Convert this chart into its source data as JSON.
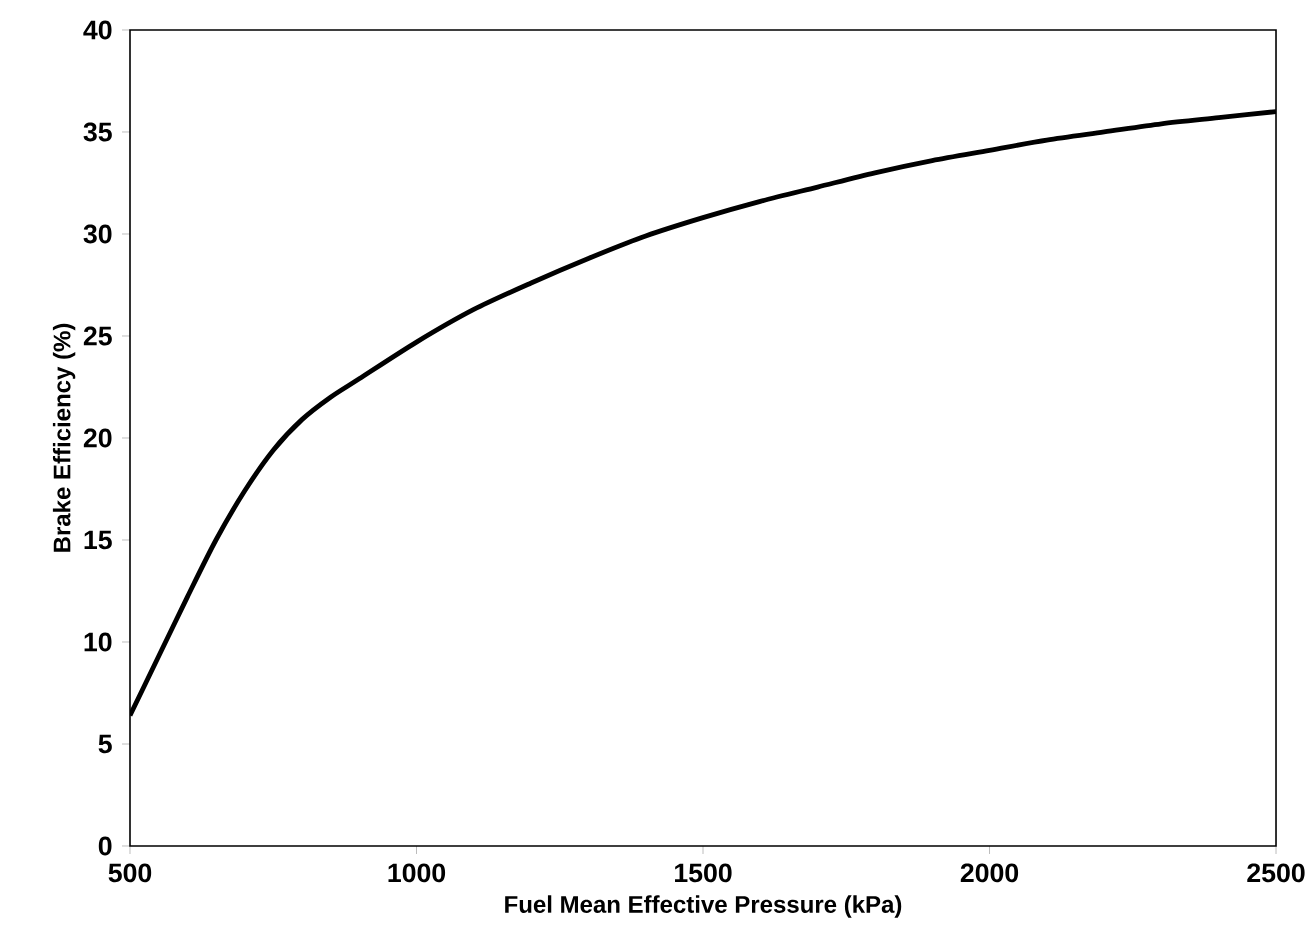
{
  "chart_data": {
    "type": "line",
    "xlabel": "Fuel Mean Effective Pressure (kPa)",
    "ylabel": "Brake Efficiency (%)",
    "x": [
      500,
      550,
      600,
      650,
      700,
      750,
      800,
      850,
      900,
      1000,
      1100,
      1200,
      1300,
      1400,
      1500,
      1600,
      1700,
      1800,
      1900,
      2000,
      2100,
      2200,
      2300,
      2400,
      2500
    ],
    "series": [
      {
        "color": "#000000",
        "values": [
          6.4,
          9.3,
          12.2,
          15.0,
          17.4,
          19.4,
          20.9,
          22.0,
          22.9,
          24.7,
          26.3,
          27.6,
          28.8,
          29.9,
          30.8,
          31.6,
          32.3,
          33.0,
          33.6,
          34.1,
          34.6,
          35.0,
          35.4,
          35.7,
          36.0
        ]
      }
    ],
    "xlim": [
      500,
      2500
    ],
    "ylim": [
      0,
      40
    ],
    "xticks": [
      500,
      1000,
      1500,
      2000,
      2500
    ],
    "yticks": [
      0,
      5,
      10,
      15,
      20,
      25,
      30,
      35,
      40
    ],
    "grid": false,
    "marker": "none",
    "line_style": "solid"
  }
}
